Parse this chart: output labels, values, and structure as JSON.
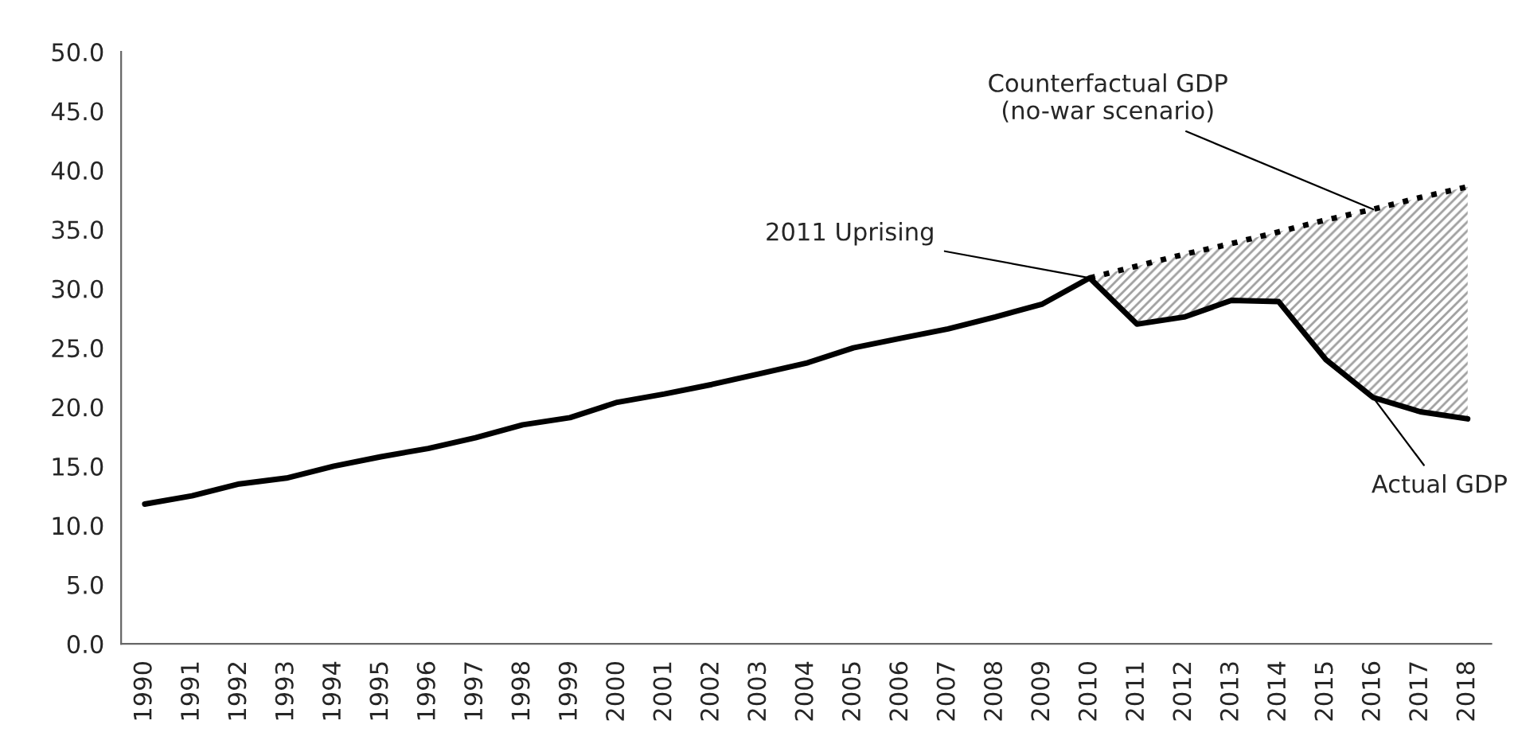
{
  "chart_data": {
    "type": "line",
    "categories": [
      "1990",
      "1991",
      "1992",
      "1993",
      "1994",
      "1995",
      "1996",
      "1997",
      "1998",
      "1999",
      "2000",
      "2001",
      "2002",
      "2003",
      "2004",
      "2005",
      "2006",
      "2007",
      "2008",
      "2009",
      "2010",
      "2011",
      "2012",
      "2013",
      "2014",
      "2015",
      "2016",
      "2017",
      "2018"
    ],
    "series": [
      {
        "color": "#000000",
        "line_style": "solid",
        "values": [
          11.8,
          12.5,
          13.5,
          14.0,
          15.0,
          15.8,
          16.5,
          17.4,
          18.5,
          19.1,
          20.4,
          21.1,
          21.9,
          22.8,
          23.7,
          25.0,
          25.8,
          26.6,
          27.6,
          28.7,
          30.9,
          27.0,
          27.6,
          29.0,
          28.9,
          24.0,
          20.8,
          19.6,
          19.0
        ]
      },
      {
        "color": "#000000",
        "line_style": "dotted",
        "values": [
          null,
          null,
          null,
          null,
          null,
          null,
          null,
          null,
          null,
          null,
          null,
          null,
          null,
          null,
          null,
          null,
          null,
          null,
          null,
          null,
          30.9,
          31.9,
          32.9,
          33.8,
          34.8,
          35.8,
          36.7,
          37.7,
          38.6
        ],
        "lower": [
          null,
          null,
          null,
          null,
          null,
          null,
          null,
          null,
          null,
          null,
          null,
          null,
          null,
          null,
          null,
          null,
          null,
          null,
          null,
          null,
          30.9,
          27.0,
          27.6,
          29.0,
          28.9,
          24.0,
          20.8,
          19.6,
          19.0
        ],
        "upper": [
          null,
          null,
          null,
          null,
          null,
          null,
          null,
          null,
          null,
          null,
          null,
          null,
          null,
          null,
          null,
          null,
          null,
          null,
          null,
          null,
          30.9,
          31.9,
          32.9,
          33.8,
          34.8,
          35.8,
          36.7,
          37.7,
          38.6
        ]
      }
    ],
    "ylim": [
      0,
      50
    ],
    "yticks": [
      {
        "value": 0,
        "label": "0.0"
      },
      {
        "value": 5,
        "label": "5.0"
      },
      {
        "value": 10,
        "label": "10.0"
      },
      {
        "value": 15,
        "label": "15.0"
      },
      {
        "value": 20,
        "label": "20.0"
      },
      {
        "value": 25,
        "label": "25.0"
      },
      {
        "value": 30,
        "label": "30.0"
      },
      {
        "value": 35,
        "label": "35.0"
      },
      {
        "value": 40,
        "label": "40.0"
      },
      {
        "value": 45,
        "label": "45.0"
      },
      {
        "value": 50,
        "label": "50.0"
      }
    ],
    "annotations": [
      {
        "text": "Counterfactual GDP\n(no-war scenario)",
        "x": "2016",
        "y": 36.7
      },
      {
        "text": "2011 Uprising",
        "x": "2010",
        "y": 30.9
      },
      {
        "text": "Actual GDP",
        "x": "2016",
        "y": 20.8
      }
    ],
    "grid": false,
    "legend": false
  }
}
